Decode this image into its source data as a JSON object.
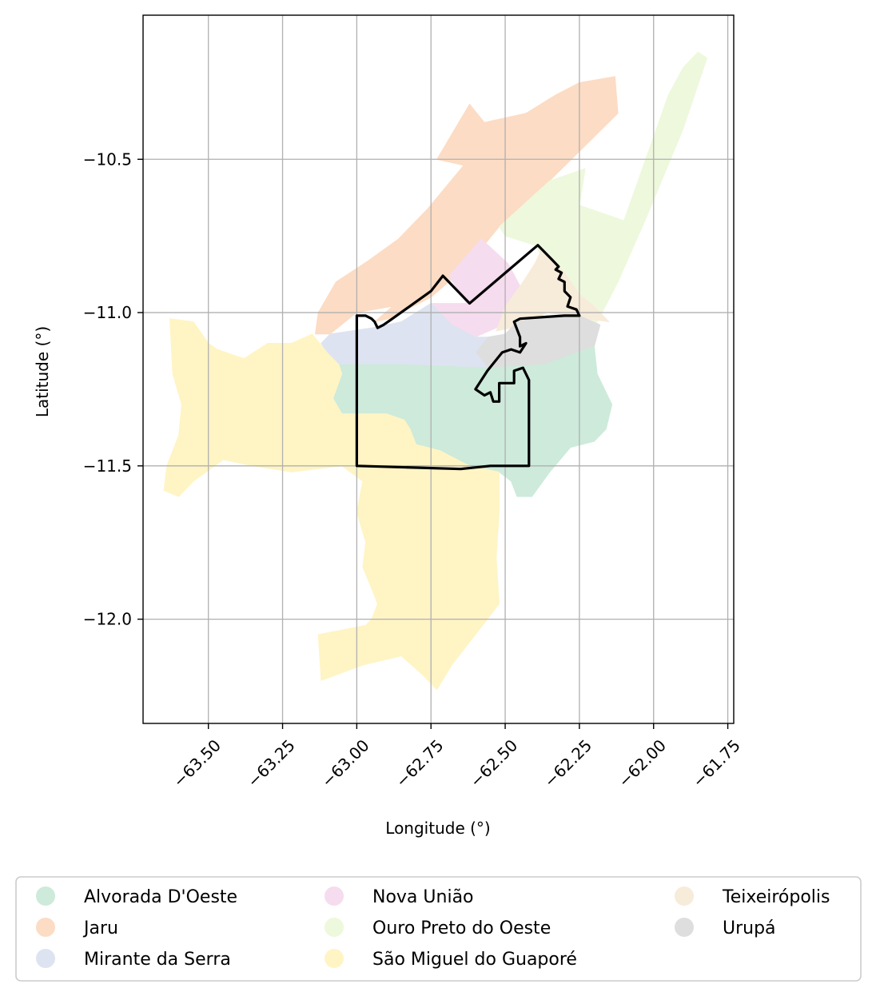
{
  "chart_data": {
    "type": "choropleth-map",
    "xlabel": "Longitude (°)",
    "ylabel": "Latitude (°)",
    "xlim": [
      -63.72,
      -61.73
    ],
    "ylim": [
      -12.34,
      -10.03
    ],
    "grid": true,
    "x_ticks": [
      -63.5,
      -63.25,
      -63.0,
      -62.75,
      -62.5,
      -62.25,
      -62.0,
      -61.75
    ],
    "x_tick_labels": [
      "−63.50",
      "−63.25",
      "−63.00",
      "−62.75",
      "−62.50",
      "−62.25",
      "−62.00",
      "−61.75"
    ],
    "y_ticks": [
      -10.5,
      -11.0,
      -11.5,
      -12.0
    ],
    "y_tick_labels": [
      "−10.5",
      "−11.0",
      "−11.5",
      "−12.0"
    ],
    "legend_placement": "bottom",
    "legend": [
      {
        "label": "Alvorada D'Oeste",
        "color": "#cdeadb"
      },
      {
        "label": "Jaru",
        "color": "#fcdcc4"
      },
      {
        "label": "Mirante da Serra",
        "color": "#dde3f0"
      },
      {
        "label": "Nova União",
        "color": "#f5dcee"
      },
      {
        "label": "Ouro Preto do Oeste",
        "color": "#eef8dc"
      },
      {
        "label": "São Miguel do Guaporé",
        "color": "#fff4c4"
      },
      {
        "label": "Teixeirópolis",
        "color": "#f7ebda"
      },
      {
        "label": "Urupá",
        "color": "#dedede"
      }
    ],
    "regions": [
      {
        "name": "Jaru",
        "color": "#fcdcc4",
        "lonlat": [
          [
            -62.73,
            -10.5
          ],
          [
            -62.62,
            -10.32
          ],
          [
            -62.57,
            -10.38
          ],
          [
            -62.43,
            -10.35
          ],
          [
            -62.33,
            -10.29
          ],
          [
            -62.25,
            -10.25
          ],
          [
            -62.13,
            -10.23
          ],
          [
            -62.12,
            -10.35
          ],
          [
            -62.35,
            -10.57
          ],
          [
            -62.52,
            -10.72
          ],
          [
            -62.63,
            -10.85
          ],
          [
            -62.75,
            -10.95
          ],
          [
            -62.89,
            -11.02
          ],
          [
            -62.94,
            -11.03
          ],
          [
            -62.88,
            -10.98
          ],
          [
            -63.0,
            -11.0
          ],
          [
            -63.09,
            -11.07
          ],
          [
            -63.14,
            -11.07
          ],
          [
            -63.13,
            -11.0
          ],
          [
            -63.07,
            -10.9
          ],
          [
            -62.96,
            -10.83
          ],
          [
            -62.86,
            -10.76
          ],
          [
            -62.76,
            -10.66
          ],
          [
            -62.64,
            -10.52
          ]
        ]
      },
      {
        "name": "Ouro Preto do Oeste",
        "color": "#eef8dc",
        "lonlat": [
          [
            -62.35,
            -10.57
          ],
          [
            -62.23,
            -10.53
          ],
          [
            -62.25,
            -10.65
          ],
          [
            -62.1,
            -10.7
          ],
          [
            -61.95,
            -10.29
          ],
          [
            -61.9,
            -10.2
          ],
          [
            -61.85,
            -10.15
          ],
          [
            -61.82,
            -10.17
          ],
          [
            -61.9,
            -10.4
          ],
          [
            -62.02,
            -10.68
          ],
          [
            -62.12,
            -10.9
          ],
          [
            -62.2,
            -11.05
          ],
          [
            -62.25,
            -11.0
          ],
          [
            -62.28,
            -10.98
          ],
          [
            -62.36,
            -10.84
          ],
          [
            -62.4,
            -10.78
          ],
          [
            -62.5,
            -10.75
          ],
          [
            -62.52,
            -10.72
          ]
        ]
      },
      {
        "name": "Nova União",
        "color": "#f5dcee",
        "lonlat": [
          [
            -62.69,
            -10.88
          ],
          [
            -62.58,
            -10.76
          ],
          [
            -62.49,
            -10.84
          ],
          [
            -62.43,
            -10.95
          ],
          [
            -62.53,
            -11.05
          ],
          [
            -62.6,
            -11.08
          ],
          [
            -62.68,
            -11.04
          ],
          [
            -62.75,
            -10.97
          ],
          [
            -62.63,
            -10.97
          ]
        ]
      },
      {
        "name": "Teixeirópolis",
        "color": "#f7ebda",
        "lonlat": [
          [
            -62.38,
            -10.8
          ],
          [
            -62.3,
            -10.87
          ],
          [
            -62.25,
            -10.94
          ],
          [
            -62.2,
            -10.98
          ],
          [
            -62.15,
            -11.03
          ],
          [
            -62.23,
            -11.02
          ],
          [
            -62.28,
            -11.01
          ],
          [
            -62.36,
            -11.0
          ],
          [
            -62.43,
            -11.04
          ],
          [
            -62.53,
            -11.06
          ],
          [
            -62.5,
            -10.98
          ],
          [
            -62.44,
            -10.9
          ],
          [
            -62.4,
            -10.84
          ]
        ]
      },
      {
        "name": "Urupá",
        "color": "#dedede",
        "lonlat": [
          [
            -62.46,
            -11.03
          ],
          [
            -62.36,
            -11.01
          ],
          [
            -62.25,
            -11.01
          ],
          [
            -62.18,
            -11.04
          ],
          [
            -62.2,
            -11.11
          ],
          [
            -62.28,
            -11.15
          ],
          [
            -62.37,
            -11.17
          ],
          [
            -62.48,
            -11.18
          ],
          [
            -62.56,
            -11.18
          ],
          [
            -62.6,
            -11.13
          ],
          [
            -62.56,
            -11.08
          ],
          [
            -62.5,
            -11.07
          ]
        ]
      },
      {
        "name": "Mirante da Serra",
        "color": "#dde3f0",
        "lonlat": [
          [
            -63.09,
            -11.07
          ],
          [
            -62.95,
            -11.05
          ],
          [
            -62.85,
            -11.03
          ],
          [
            -62.75,
            -10.97
          ],
          [
            -62.68,
            -11.04
          ],
          [
            -62.6,
            -11.08
          ],
          [
            -62.56,
            -11.08
          ],
          [
            -62.6,
            -11.13
          ],
          [
            -62.56,
            -11.18
          ],
          [
            -62.7,
            -11.18
          ],
          [
            -62.85,
            -11.17
          ],
          [
            -62.95,
            -11.17
          ],
          [
            -63.06,
            -11.17
          ],
          [
            -63.1,
            -11.13
          ],
          [
            -63.12,
            -11.1
          ]
        ]
      },
      {
        "name": "Alvorada D'Oeste",
        "color": "#cdeadb",
        "lonlat": [
          [
            -63.06,
            -11.17
          ],
          [
            -62.95,
            -11.17
          ],
          [
            -62.85,
            -11.17
          ],
          [
            -62.56,
            -11.18
          ],
          [
            -62.37,
            -11.17
          ],
          [
            -62.2,
            -11.11
          ],
          [
            -62.19,
            -11.2
          ],
          [
            -62.14,
            -11.3
          ],
          [
            -62.16,
            -11.38
          ],
          [
            -62.2,
            -11.42
          ],
          [
            -62.28,
            -11.44
          ],
          [
            -62.35,
            -11.52
          ],
          [
            -62.41,
            -11.6
          ],
          [
            -62.46,
            -11.6
          ],
          [
            -62.48,
            -11.55
          ],
          [
            -62.52,
            -11.52
          ],
          [
            -62.62,
            -11.5
          ],
          [
            -62.72,
            -11.45
          ],
          [
            -62.8,
            -11.43
          ],
          [
            -62.82,
            -11.38
          ],
          [
            -62.84,
            -11.35
          ],
          [
            -62.9,
            -11.33
          ],
          [
            -62.97,
            -11.33
          ],
          [
            -63.05,
            -11.33
          ],
          [
            -63.08,
            -11.28
          ],
          [
            -63.05,
            -11.2
          ]
        ]
      },
      {
        "name": "São Miguel do Guaporé",
        "color": "#fff4c4",
        "lonlat": [
          [
            -63.63,
            -11.02
          ],
          [
            -63.55,
            -11.03
          ],
          [
            -63.5,
            -11.1
          ],
          [
            -63.47,
            -11.12
          ],
          [
            -63.38,
            -11.15
          ],
          [
            -63.3,
            -11.1
          ],
          [
            -63.22,
            -11.1
          ],
          [
            -63.15,
            -11.07
          ],
          [
            -63.1,
            -11.13
          ],
          [
            -63.06,
            -11.17
          ],
          [
            -63.05,
            -11.2
          ],
          [
            -63.08,
            -11.28
          ],
          [
            -63.05,
            -11.33
          ],
          [
            -62.97,
            -11.33
          ],
          [
            -62.9,
            -11.33
          ],
          [
            -62.84,
            -11.35
          ],
          [
            -62.82,
            -11.38
          ],
          [
            -62.8,
            -11.43
          ],
          [
            -62.72,
            -11.45
          ],
          [
            -62.62,
            -11.5
          ],
          [
            -62.52,
            -11.52
          ],
          [
            -62.52,
            -11.65
          ],
          [
            -62.53,
            -11.8
          ],
          [
            -62.52,
            -11.95
          ],
          [
            -62.6,
            -12.05
          ],
          [
            -62.68,
            -12.15
          ],
          [
            -62.73,
            -12.23
          ],
          [
            -62.78,
            -12.18
          ],
          [
            -62.85,
            -12.12
          ],
          [
            -62.98,
            -12.15
          ],
          [
            -63.12,
            -12.2
          ],
          [
            -63.13,
            -12.05
          ],
          [
            -62.97,
            -12.02
          ],
          [
            -62.95,
            -12.0
          ],
          [
            -62.93,
            -11.95
          ],
          [
            -62.95,
            -11.9
          ],
          [
            -62.98,
            -11.83
          ],
          [
            -62.97,
            -11.75
          ],
          [
            -63.0,
            -11.65
          ],
          [
            -62.98,
            -11.55
          ],
          [
            -63.05,
            -11.5
          ],
          [
            -63.22,
            -11.52
          ],
          [
            -63.35,
            -11.5
          ],
          [
            -63.45,
            -11.48
          ],
          [
            -63.55,
            -11.55
          ],
          [
            -63.6,
            -11.6
          ],
          [
            -63.65,
            -11.58
          ],
          [
            -63.64,
            -11.5
          ],
          [
            -63.6,
            -11.4
          ],
          [
            -63.59,
            -11.3
          ],
          [
            -63.62,
            -11.2
          ]
        ]
      }
    ],
    "highlight_outline": {
      "color": "#000000",
      "lonlat": [
        [
          -62.93,
          -11.05
        ],
        [
          -62.91,
          -11.04
        ],
        [
          -62.88,
          -11.02
        ],
        [
          -62.75,
          -10.93
        ],
        [
          -62.71,
          -10.88
        ],
        [
          -62.62,
          -10.97
        ],
        [
          -62.39,
          -10.78
        ],
        [
          -62.34,
          -10.83
        ],
        [
          -62.32,
          -10.85
        ],
        [
          -62.33,
          -10.86
        ],
        [
          -62.31,
          -10.87
        ],
        [
          -62.32,
          -10.89
        ],
        [
          -62.3,
          -10.9
        ],
        [
          -62.3,
          -10.93
        ],
        [
          -62.28,
          -10.95
        ],
        [
          -62.29,
          -10.98
        ],
        [
          -62.26,
          -10.99
        ],
        [
          -62.25,
          -11.01
        ],
        [
          -62.3,
          -11.01
        ],
        [
          -62.45,
          -11.02
        ],
        [
          -62.47,
          -11.03
        ],
        [
          -62.45,
          -11.08
        ],
        [
          -62.45,
          -11.11
        ],
        [
          -62.43,
          -11.1
        ],
        [
          -62.45,
          -11.13
        ],
        [
          -62.48,
          -11.12
        ],
        [
          -62.51,
          -11.13
        ],
        [
          -62.56,
          -11.19
        ],
        [
          -62.6,
          -11.25
        ],
        [
          -62.57,
          -11.27
        ],
        [
          -62.55,
          -11.26
        ],
        [
          -62.54,
          -11.29
        ],
        [
          -62.52,
          -11.29
        ],
        [
          -62.52,
          -11.23
        ],
        [
          -62.47,
          -11.23
        ],
        [
          -62.47,
          -11.19
        ],
        [
          -62.44,
          -11.18
        ],
        [
          -62.43,
          -11.2
        ],
        [
          -62.42,
          -11.22
        ],
        [
          -62.42,
          -11.35
        ],
        [
          -62.42,
          -11.5
        ],
        [
          -62.55,
          -11.5
        ],
        [
          -62.65,
          -11.51
        ],
        [
          -63.0,
          -11.5
        ],
        [
          -63.0,
          -11.01
        ],
        [
          -62.97,
          -11.01
        ],
        [
          -62.95,
          -11.02
        ],
        [
          -62.94,
          -11.03
        ]
      ]
    }
  }
}
